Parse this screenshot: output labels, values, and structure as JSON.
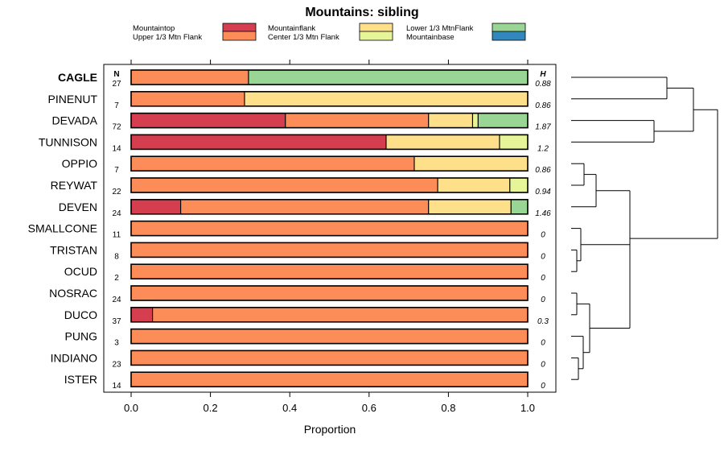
{
  "chart_data": {
    "type": "bar",
    "stacked": true,
    "orientation": "horizontal",
    "title": "Mountains: sibling",
    "xlabel": "Proportion",
    "ylabel": "",
    "xlim": [
      0,
      1
    ],
    "xticks": [
      "0.0",
      "0.2",
      "0.4",
      "0.6",
      "0.8",
      "1.0"
    ],
    "xtick_values": [
      0,
      0.2,
      0.4,
      0.6,
      0.8,
      1.0
    ],
    "n_header": "N",
    "h_header": "H",
    "highlight_category": "CAGLE",
    "legend_position": "top",
    "legend": [
      {
        "key": "Mountaintop",
        "label": "Mountaintop",
        "color": "#d53e4f"
      },
      {
        "key": "Upper",
        "label": "Upper 1/3 Mtn Flank",
        "color": "#fc8d59"
      },
      {
        "key": "Mountainflank",
        "label": "Mountainflank",
        "color": "#fee08b"
      },
      {
        "key": "Center",
        "label": "Center 1/3 Mtn Flank",
        "color": "#e6f598"
      },
      {
        "key": "Lower",
        "label": "Lower 1/3 MtnFlank",
        "color": "#99d594"
      },
      {
        "key": "Mountainbase",
        "label": "Mountainbase",
        "color": "#3288bd"
      }
    ],
    "categories": [
      "CAGLE",
      "PINENUT",
      "DEVADA",
      "TUNNISON",
      "OPPIO",
      "REYWAT",
      "DEVEN",
      "SMALLCONE",
      "TRISTAN",
      "OCUD",
      "NOSRAC",
      "DUCO",
      "PUNG",
      "INDIANO",
      "ISTER"
    ],
    "n_values": [
      "27",
      "7",
      "72",
      "14",
      "7",
      "22",
      "24",
      "11",
      "8",
      "2",
      "24",
      "37",
      "3",
      "23",
      "14"
    ],
    "h_values": [
      "0.88",
      "0.86",
      "1.87",
      "1.2",
      "0.86",
      "0.94",
      "1.46",
      "0",
      "0",
      "0",
      "0",
      "0.3",
      "0",
      "0",
      "0"
    ],
    "series": [
      {
        "name": "Mountaintop",
        "color": "#d53e4f",
        "values": [
          0,
          0,
          0.389,
          0.643,
          0,
          0,
          0.125,
          0,
          0,
          0,
          0,
          0.054,
          0,
          0,
          0
        ]
      },
      {
        "name": "Upper 1/3 Mtn Flank",
        "color": "#fc8d59",
        "values": [
          0.296,
          0.286,
          0.361,
          0,
          0.714,
          0.773,
          0.625,
          1,
          1,
          1,
          1,
          0.946,
          1,
          1,
          1
        ]
      },
      {
        "name": "Mountainflank",
        "color": "#fee08b",
        "values": [
          0,
          0.714,
          0.111,
          0.286,
          0.286,
          0.182,
          0.208,
          0,
          0,
          0,
          0,
          0,
          0,
          0,
          0
        ]
      },
      {
        "name": "Center 1/3 Mtn Flank",
        "color": "#e6f598",
        "values": [
          0,
          0,
          0.014,
          0.071,
          0,
          0.045,
          0,
          0,
          0,
          0,
          0,
          0,
          0,
          0,
          0
        ]
      },
      {
        "name": "Lower 1/3 MtnFlank",
        "color": "#99d594",
        "values": [
          0.704,
          0,
          0.125,
          0,
          0,
          0,
          0.042,
          0,
          0,
          0,
          0,
          0,
          0,
          0,
          0
        ]
      },
      {
        "name": "Mountainbase",
        "color": "#3288bd",
        "values": [
          0,
          0,
          0,
          0,
          0,
          0,
          0,
          0,
          0,
          0,
          0,
          0,
          0,
          0,
          0
        ]
      }
    ]
  }
}
